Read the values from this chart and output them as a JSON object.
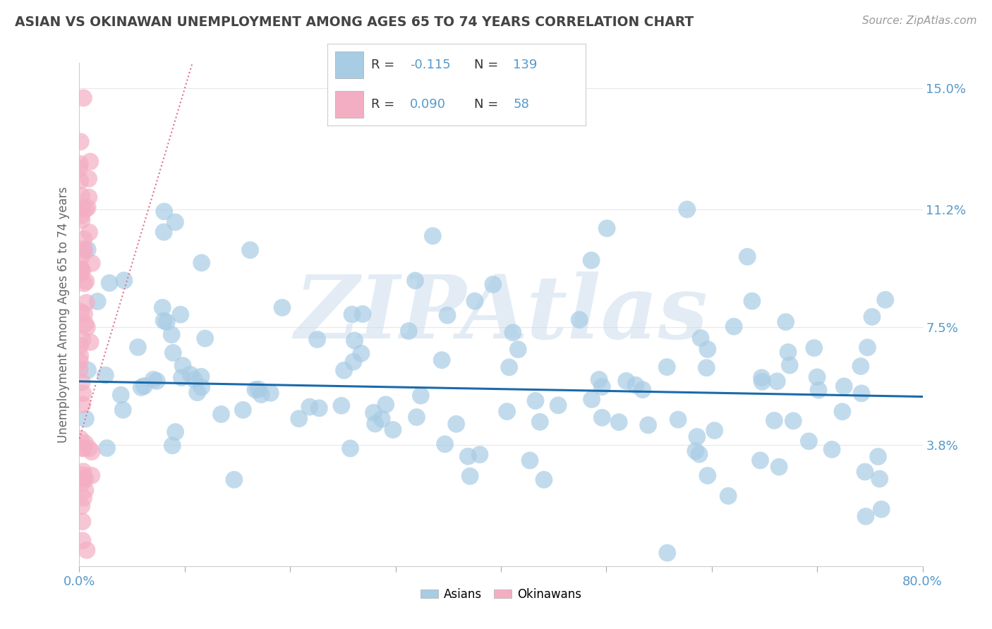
{
  "title": "ASIAN VS OKINAWAN UNEMPLOYMENT AMONG AGES 65 TO 74 YEARS CORRELATION CHART",
  "source": "Source: ZipAtlas.com",
  "ylabel": "Unemployment Among Ages 65 to 74 years",
  "xlim": [
    0,
    0.8
  ],
  "ylim": [
    0,
    0.158
  ],
  "yticks": [
    0.038,
    0.075,
    0.112,
    0.15
  ],
  "ytick_labels": [
    "3.8%",
    "7.5%",
    "11.2%",
    "15.0%"
  ],
  "xticks": [
    0.0,
    0.1,
    0.2,
    0.3,
    0.4,
    0.5,
    0.6,
    0.7,
    0.8
  ],
  "asian_color": "#a8cce4",
  "okinawan_color": "#f4aec4",
  "asian_line_color": "#1a6aab",
  "okinawan_line_color": "#e07090",
  "R_asian": -0.115,
  "N_asian": 139,
  "R_okinawan": 0.09,
  "N_okinawan": 58,
  "legend_label_asian": "Asians",
  "legend_label_okinawan": "Okinawans",
  "watermark": "ZIPAtlas",
  "background_color": "#ffffff",
  "grid_color": "#e8e8e8",
  "title_color": "#444444",
  "axis_label_color": "#666666",
  "tick_label_color": "#5599cc",
  "text_color": "#333333"
}
